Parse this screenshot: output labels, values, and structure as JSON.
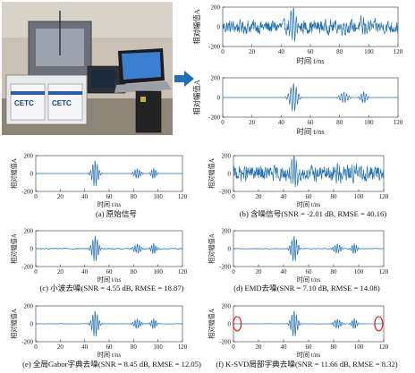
{
  "photo": {
    "logo_left": "CETC",
    "logo_right": "CETC"
  },
  "arrow": {
    "color": "#1f6fb5"
  },
  "chart_data": [
    {
      "id": "top-noisy",
      "type": "line",
      "panel": "top",
      "kind": "noisy",
      "noise": 0.85,
      "xlabel": "时间 t/ns",
      "ylabel": "相对幅值A",
      "xlim": [
        0,
        120
      ],
      "ylim": [
        -200,
        200
      ],
      "xticks": [
        0,
        20,
        40,
        60,
        80,
        100,
        120
      ],
      "yticks": [
        -200,
        0,
        200
      ],
      "caption": ""
    },
    {
      "id": "top-clean",
      "type": "line",
      "panel": "top",
      "kind": "clean",
      "xlabel": "时间 t/ns",
      "ylabel": "相对幅值A",
      "xlim": [
        0,
        120
      ],
      "ylim": [
        -200,
        200
      ],
      "xticks": [
        0,
        20,
        40,
        60,
        80,
        100,
        120
      ],
      "yticks": [
        -200,
        0,
        200
      ],
      "caption": ""
    },
    {
      "id": "a",
      "type": "line",
      "kind": "clean",
      "xlabel": "时间 t/ns",
      "ylabel": "相对幅值A",
      "xlim": [
        0,
        120
      ],
      "ylim": [
        -200,
        200
      ],
      "xticks": [
        0,
        20,
        40,
        60,
        80,
        100,
        120
      ],
      "yticks": [
        -200,
        0,
        200
      ],
      "caption": "(a) 原始信号"
    },
    {
      "id": "b",
      "type": "line",
      "kind": "noisy",
      "noise": 1.0,
      "xlabel": "时间 t/ns",
      "ylabel": "相对幅值A",
      "xlim": [
        0,
        120
      ],
      "ylim": [
        -200,
        200
      ],
      "xticks": [
        0,
        20,
        40,
        60,
        80,
        100,
        120
      ],
      "yticks": [
        -200,
        0,
        200
      ],
      "caption": "(b) 含噪信号(SNR = -2.01 dB, RMSE = 40.16)"
    },
    {
      "id": "c",
      "type": "line",
      "kind": "denoised",
      "residual": 0.12,
      "xlabel": "时间 t/ns",
      "ylabel": "相对幅值A",
      "xlim": [
        0,
        120
      ],
      "ylim": [
        -200,
        200
      ],
      "xticks": [
        0,
        20,
        40,
        60,
        80,
        100,
        120
      ],
      "yticks": [
        -200,
        0,
        200
      ],
      "caption": "(c) 小波去噪(SNR = 4.55 dB, RMSE = 18.87)"
    },
    {
      "id": "d",
      "type": "line",
      "kind": "denoised",
      "residual": 0.08,
      "xlabel": "时间 t/ns",
      "ylabel": "相对幅值A",
      "xlim": [
        0,
        120
      ],
      "ylim": [
        -200,
        200
      ],
      "xticks": [
        0,
        20,
        40,
        60,
        80,
        100,
        120
      ],
      "yticks": [
        -200,
        0,
        200
      ],
      "caption": "(d) EMD去噪(SNR = 7.10 dB, RMSE = 14.08)"
    },
    {
      "id": "e",
      "type": "line",
      "kind": "denoised",
      "residual": 0.05,
      "xlabel": "时间 t/ns",
      "ylabel": "相对幅值A",
      "xlim": [
        0,
        120
      ],
      "ylim": [
        -200,
        200
      ],
      "xticks": [
        0,
        20,
        40,
        60,
        80,
        100,
        120
      ],
      "yticks": [
        -200,
        0,
        200
      ],
      "caption": "(e) 全局Gabor字典去噪(SNR = 8.45 dB, RMSE = 12.05)"
    },
    {
      "id": "f",
      "type": "line",
      "kind": "denoised",
      "residual": 0.03,
      "marked_x": [
        3,
        116
      ],
      "xlabel": "时间 t/ns",
      "ylabel": "相对幅值A",
      "xlim": [
        0,
        120
      ],
      "ylim": [
        -200,
        200
      ],
      "xticks": [
        0,
        20,
        40,
        60,
        80,
        100,
        120
      ],
      "yticks": [
        -200,
        0,
        200
      ],
      "caption": "(f) K-SVD局部字典去噪(SNR = 11.66 dB, RMSE = 8.32)"
    }
  ]
}
